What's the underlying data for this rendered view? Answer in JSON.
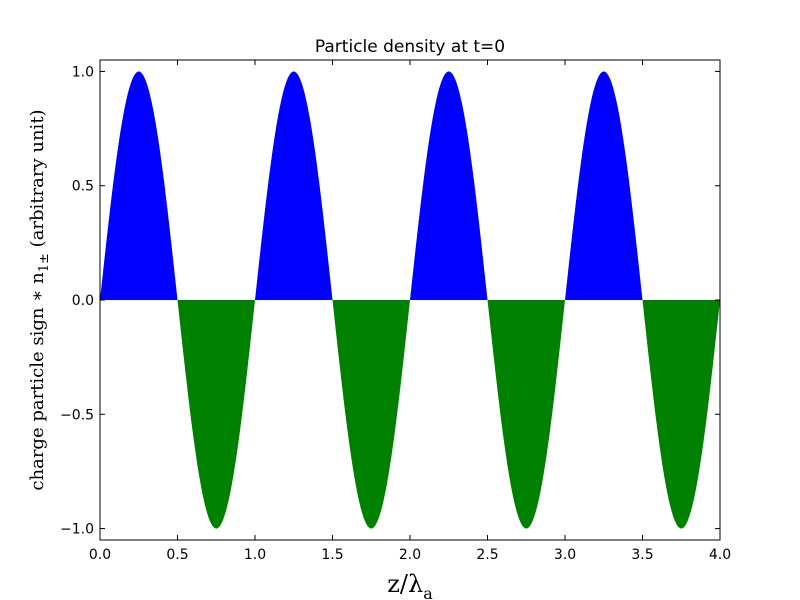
{
  "chart_data": {
    "type": "area",
    "title": "Particle density at t=0",
    "xlabel": {
      "main": "z/λ",
      "subscript": "a"
    },
    "ylabel": {
      "main": "charge particle sign  ∗ n",
      "subscript": "1±",
      "suffix": " (arbitrary unit)"
    },
    "xlim": [
      0.0,
      4.0
    ],
    "ylim": [
      -1.05,
      1.05
    ],
    "xticks": [
      0.0,
      0.5,
      1.0,
      1.5,
      2.0,
      2.5,
      3.0,
      3.5,
      4.0
    ],
    "xtick_labels": [
      "0.0",
      "0.5",
      "1.0",
      "1.5",
      "2.0",
      "2.5",
      "3.0",
      "3.5",
      "4.0"
    ],
    "yticks": [
      1.0,
      0.5,
      0.0,
      -0.5,
      -1.0
    ],
    "ytick_labels": [
      "1.0",
      "0.5",
      "0.0",
      "−0.5",
      "−1.0"
    ],
    "grid": false,
    "legend": "none",
    "series": [
      {
        "function": "sin(2πz)",
        "fill_positive": "#0000ff",
        "fill_negative": "#008000",
        "samples": 401
      }
    ]
  }
}
